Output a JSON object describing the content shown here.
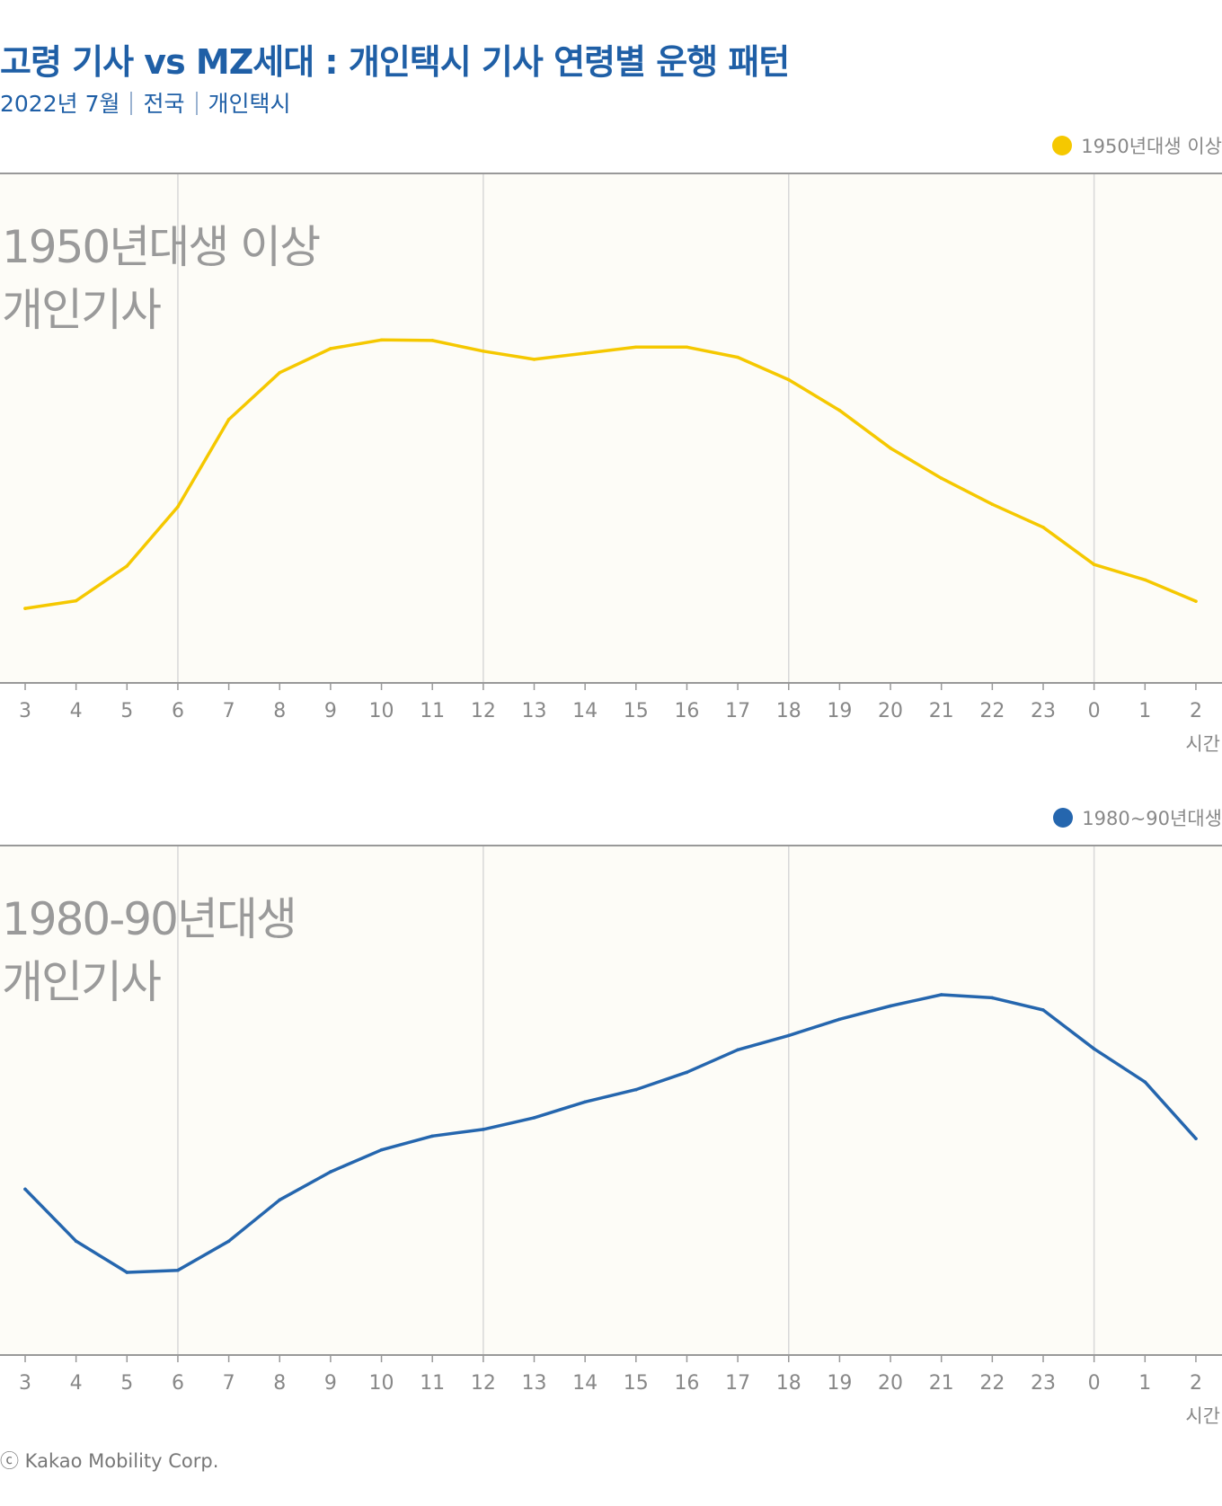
{
  "header": {
    "title": "고령 기사 vs MZ세대 : 개인택시 기사 연령별 운행 패턴",
    "subtitle_date": "2022년 7월",
    "subtitle_region": "전국",
    "subtitle_type": "개인택시"
  },
  "footer": {
    "copyright": "ⓒ Kakao Mobility Corp."
  },
  "colors": {
    "title": "#1f5fa6",
    "series_old": "#f5c800",
    "series_young": "#2566ae",
    "plot_bg": "#fdfcf7"
  },
  "chart_data": [
    {
      "type": "line",
      "legend": "1950년대생 이상",
      "overlay_label_line1": "1950년대생 이상",
      "overlay_label_line2": "개인기사",
      "xlabel": "시간",
      "categories": [
        "3",
        "4",
        "5",
        "6",
        "7",
        "8",
        "9",
        "10",
        "11",
        "12",
        "13",
        "14",
        "15",
        "16",
        "17",
        "18",
        "19",
        "20",
        "21",
        "22",
        "23",
        "0",
        "1",
        "2"
      ],
      "series": [
        {
          "name": "1950년대생 이상",
          "color": "#f5c800",
          "values": [
            14.6,
            16.1,
            22.9,
            34.5,
            51.6,
            60.8,
            65.5,
            67.2,
            67.1,
            65.0,
            63.4,
            64.6,
            65.8,
            65.8,
            63.8,
            59.4,
            53.4,
            46.0,
            40.1,
            35.0,
            30.5,
            23.2,
            20.2,
            16.0
          ]
        }
      ],
      "ylim": [
        0,
        100
      ],
      "grid": "vertical at 6, 12, 18, 0"
    },
    {
      "type": "line",
      "legend": "1980~90년대생",
      "overlay_label_line1": "1980-90년대생",
      "overlay_label_line2": "개인기사",
      "xlabel": "시간",
      "categories": [
        "3",
        "4",
        "5",
        "6",
        "7",
        "8",
        "9",
        "10",
        "11",
        "12",
        "13",
        "14",
        "15",
        "16",
        "17",
        "18",
        "19",
        "20",
        "21",
        "22",
        "23",
        "0",
        "1",
        "2"
      ],
      "series": [
        {
          "name": "1980~90년대생",
          "color": "#2566ae",
          "values": [
            32.5,
            22.3,
            16.2,
            16.6,
            22.3,
            30.4,
            35.9,
            40.2,
            42.9,
            44.2,
            46.5,
            49.6,
            52.0,
            55.4,
            59.8,
            62.6,
            65.8,
            68.4,
            70.6,
            70.0,
            67.6,
            60.0,
            53.5,
            42.4
          ]
        }
      ],
      "ylim": [
        0,
        100
      ],
      "grid": "vertical at 6, 12, 18, 0"
    }
  ]
}
